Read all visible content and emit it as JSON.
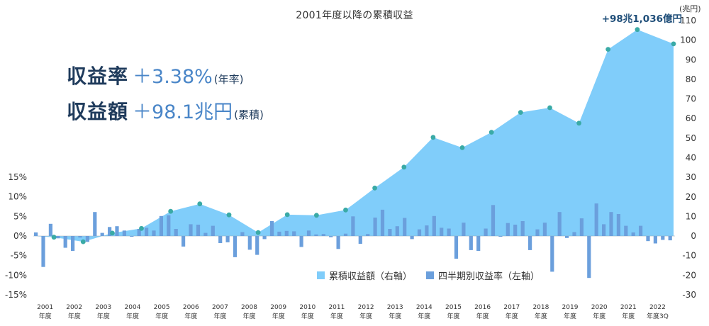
{
  "title": "2001年度以降の累積収益",
  "callout": "+98兆1,036億円",
  "right_axis_unit": "(兆円)",
  "headlines": {
    "rate": {
      "label": "収益率",
      "value": "＋3.38%",
      "note": "(年率)"
    },
    "total": {
      "label": "収益額",
      "value": "＋98.1兆円",
      "note": "(累積)"
    }
  },
  "legend": {
    "cumulative": "累積収益額（右軸）",
    "quarterly": "四半期別収益率（左軸）"
  },
  "colors": {
    "area": "#80cdfa",
    "bar": "#6b9fdc",
    "marker": "#3aaaa6",
    "axis_text": "#333333"
  },
  "chart_data": {
    "type": "bar+area",
    "title": "2001年度以降の累積収益",
    "x_labels": [
      [
        "2001",
        "年度"
      ],
      [
        "2002",
        "年度"
      ],
      [
        "2003",
        "年度"
      ],
      [
        "2004",
        "年度"
      ],
      [
        "2005",
        "年度"
      ],
      [
        "2006",
        "年度"
      ],
      [
        "2007",
        "年度"
      ],
      [
        "2008",
        "年度"
      ],
      [
        "2009",
        "年度"
      ],
      [
        "2010",
        "年度"
      ],
      [
        "2011",
        "年度"
      ],
      [
        "2012",
        "年度"
      ],
      [
        "2013",
        "年度"
      ],
      [
        "2014",
        "年度"
      ],
      [
        "2015",
        "年度"
      ],
      [
        "2016",
        "年度"
      ],
      [
        "2017",
        "年度"
      ],
      [
        "2018",
        "年度"
      ],
      [
        "2019",
        "年度"
      ],
      [
        "2020",
        "年度"
      ],
      [
        "2021",
        "年度"
      ],
      [
        "2022",
        "年度3Q"
      ]
    ],
    "left_axis": {
      "ylim": [
        -15,
        15
      ],
      "ticks": [
        "15%",
        "10%",
        "5%",
        "0%",
        "-5%",
        "-10%",
        "-15%"
      ]
    },
    "right_axis": {
      "ylim": [
        -30,
        110
      ],
      "ticks": [
        "110",
        "100",
        "90",
        "80",
        "70",
        "60",
        "50",
        "40",
        "30",
        "20",
        "10",
        "0",
        "-10",
        "-20",
        "-30"
      ]
    },
    "series": [
      {
        "name": "累積収益額（右軸）",
        "axis": "right",
        "type": "area",
        "fiscal_year_end_values": [
          -0.6,
          -2.9,
          1.5,
          3.9,
          12.6,
          16.4,
          10.8,
          1.8,
          10.9,
          10.6,
          13.3,
          24.5,
          35.2,
          50.4,
          45.1,
          53.0,
          63.1,
          65.5,
          57.6,
          95.3,
          105.4,
          98.1
        ]
      },
      {
        "name": "四半期別収益率（左軸）",
        "axis": "left",
        "type": "bar",
        "values": [
          0.9,
          -7.9,
          3.1,
          -0.6,
          -3.0,
          -3.8,
          -0.4,
          -1.5,
          6.1,
          0.8,
          2.3,
          2.5,
          1.4,
          -0.2,
          1.8,
          2.1,
          1.4,
          5.1,
          5.3,
          1.8,
          -2.7,
          3.0,
          2.9,
          0.8,
          2.6,
          -1.8,
          -1.6,
          -5.4,
          1.0,
          -3.5,
          -4.8,
          -0.8,
          3.8,
          1.1,
          1.3,
          1.2,
          -2.8,
          1.4,
          0.4,
          0.5,
          -0.3,
          -3.3,
          0.6,
          5.0,
          -2.0,
          0.5,
          4.7,
          6.7,
          1.8,
          2.5,
          4.6,
          -0.8,
          1.7,
          2.7,
          5.1,
          2.1,
          1.9,
          -5.8,
          3.4,
          -3.6,
          -3.8,
          1.9,
          7.9,
          -0.2,
          3.3,
          2.9,
          3.8,
          -3.6,
          1.7,
          3.4,
          -9.1,
          6.1,
          -0.5,
          1.0,
          4.5,
          -10.7,
          8.3,
          3.0,
          6.1,
          5.6,
          2.6,
          0.9,
          2.6,
          -1.3,
          -1.9,
          -1.0,
          -1.1
        ]
      }
    ],
    "grid": false
  }
}
